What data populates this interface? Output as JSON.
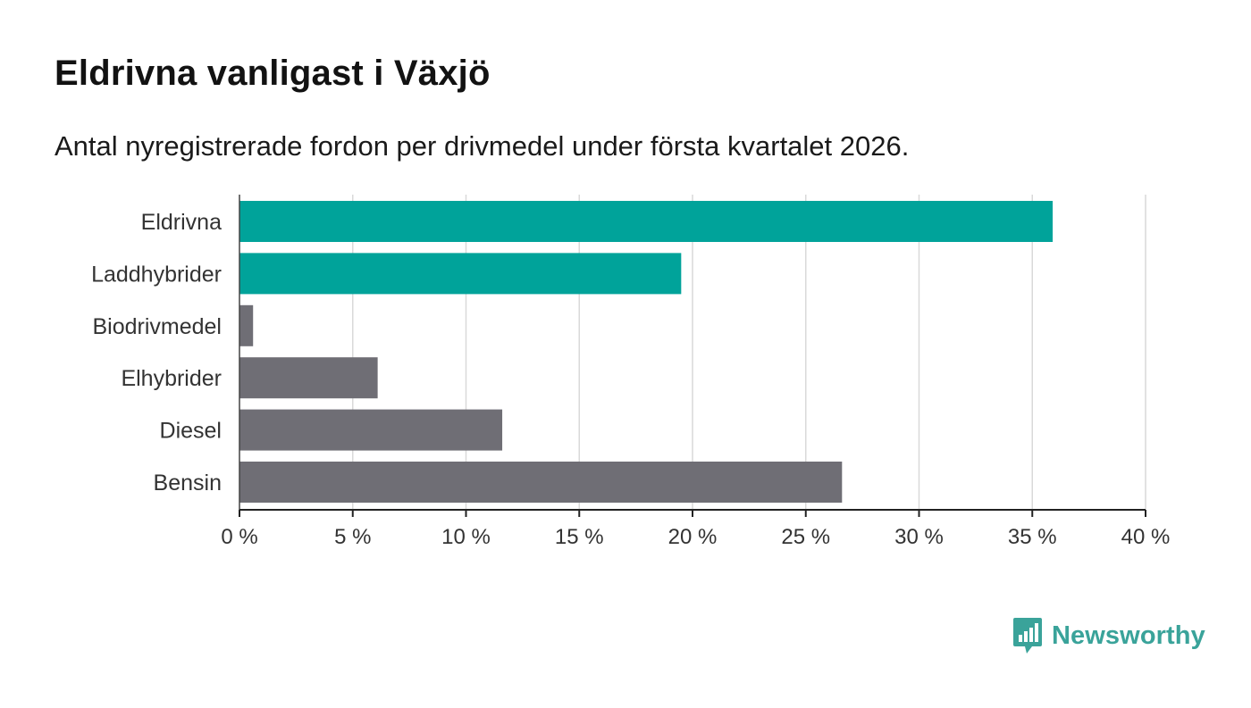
{
  "title": "Eldrivna vanligast i Växjö",
  "subtitle": "Antal nyregistrerade fordon per drivmedel under första kvartalet 2026.",
  "brand": {
    "name": "Newsworthy",
    "icon": "newsworthy-logo-icon",
    "color": "#3aa39a"
  },
  "chart_data": {
    "type": "bar",
    "orientation": "horizontal",
    "categories": [
      "Eldrivna",
      "Laddhybrider",
      "Biodrivmedel",
      "Elhybrider",
      "Diesel",
      "Bensin"
    ],
    "values": [
      35.9,
      19.5,
      0.6,
      6.1,
      11.6,
      26.6
    ],
    "colors": [
      "#00a39a",
      "#00a39a",
      "#6f6e75",
      "#6f6e75",
      "#6f6e75",
      "#6f6e75"
    ],
    "xlim": [
      0,
      40
    ],
    "xticks": [
      0,
      5,
      10,
      15,
      20,
      25,
      30,
      35,
      40
    ],
    "xtick_labels": [
      "0 %",
      "5 %",
      "10 %",
      "15 %",
      "20 %",
      "25 %",
      "30 %",
      "35 %",
      "40 %"
    ],
    "grid": "vertical",
    "xlabel": "",
    "ylabel": ""
  }
}
